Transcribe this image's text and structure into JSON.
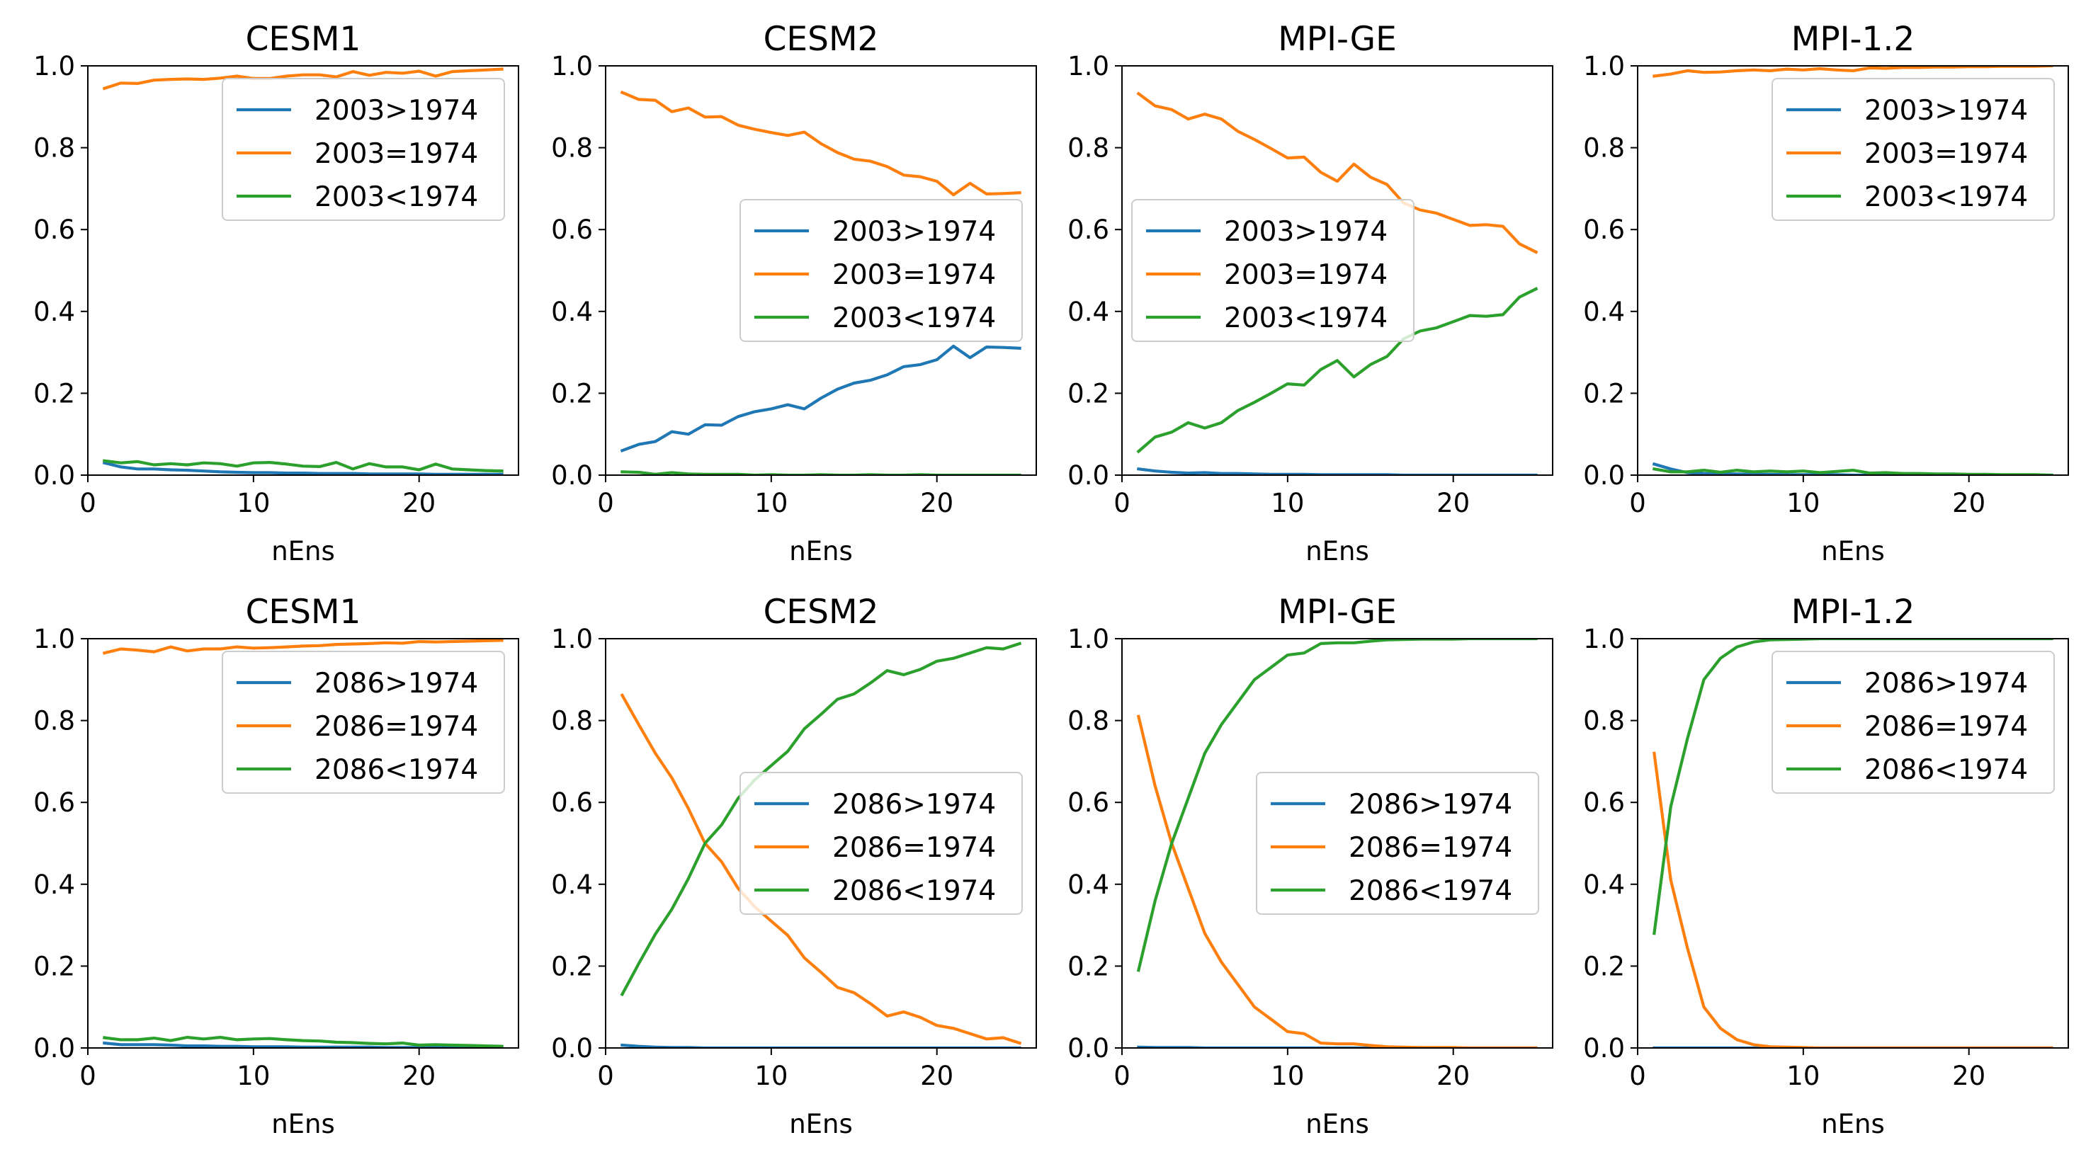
{
  "figure": {
    "layout": "2 rows x 4 columns"
  },
  "colors": {
    "gt": "#1f77b4",
    "eq": "#ff7f0e",
    "lt": "#2ca02c"
  },
  "chart_data": [
    {
      "type": "line",
      "title": "CESM1",
      "xlabel": "nEns",
      "ylabel": "",
      "xlim": [
        0,
        26
      ],
      "ylim": [
        0,
        1
      ],
      "xticks": [
        0,
        10,
        20
      ],
      "yticks": [
        0.0,
        0.2,
        0.4,
        0.6,
        0.8,
        1.0
      ],
      "legend_placement": "upper-right",
      "x": [
        1,
        2,
        3,
        4,
        5,
        6,
        7,
        8,
        9,
        10,
        11,
        12,
        13,
        14,
        15,
        16,
        17,
        18,
        19,
        20,
        21,
        22,
        23,
        24,
        25
      ],
      "series": [
        {
          "name": "2003>1974",
          "color": "#1f77b4",
          "values": [
            0.03,
            0.02,
            0.015,
            0.015,
            0.013,
            0.012,
            0.01,
            0.008,
            0.007,
            0.006,
            0.006,
            0.005,
            0.005,
            0.004,
            0.004,
            0.004,
            0.003,
            0.003,
            0.003,
            0.003,
            0.002,
            0.002,
            0.002,
            0.002,
            0.002
          ]
        },
        {
          "name": "2003=1974",
          "color": "#ff7f0e",
          "values": [
            0.945,
            0.958,
            0.957,
            0.965,
            0.967,
            0.968,
            0.967,
            0.97,
            0.975,
            0.969,
            0.969,
            0.975,
            0.978,
            0.978,
            0.973,
            0.986,
            0.977,
            0.984,
            0.982,
            0.987,
            0.975,
            0.986,
            0.988,
            0.99,
            0.992
          ]
        },
        {
          "name": "2003<1974",
          "color": "#2ca02c",
          "values": [
            0.035,
            0.03,
            0.033,
            0.025,
            0.028,
            0.025,
            0.03,
            0.028,
            0.022,
            0.03,
            0.031,
            0.027,
            0.022,
            0.021,
            0.031,
            0.015,
            0.028,
            0.02,
            0.02,
            0.013,
            0.027,
            0.015,
            0.013,
            0.011,
            0.01
          ]
        }
      ]
    },
    {
      "type": "line",
      "title": "CESM2",
      "xlabel": "nEns",
      "ylabel": "",
      "xlim": [
        0,
        26
      ],
      "ylim": [
        0,
        1
      ],
      "xticks": [
        0,
        10,
        20
      ],
      "yticks": [
        0.0,
        0.2,
        0.4,
        0.6,
        0.8,
        1.0
      ],
      "legend_placement": "center-right",
      "x": [
        1,
        2,
        3,
        4,
        5,
        6,
        7,
        8,
        9,
        10,
        11,
        12,
        13,
        14,
        15,
        16,
        17,
        18,
        19,
        20,
        21,
        22,
        23,
        24,
        25
      ],
      "series": [
        {
          "name": "2003>1974",
          "color": "#1f77b4",
          "values": [
            0.06,
            0.075,
            0.082,
            0.106,
            0.1,
            0.123,
            0.122,
            0.143,
            0.155,
            0.162,
            0.172,
            0.162,
            0.188,
            0.21,
            0.225,
            0.232,
            0.245,
            0.265,
            0.27,
            0.282,
            0.315,
            0.287,
            0.313,
            0.312,
            0.31
          ]
        },
        {
          "name": "2003=1974",
          "color": "#ff7f0e",
          "values": [
            0.935,
            0.918,
            0.916,
            0.888,
            0.897,
            0.875,
            0.876,
            0.855,
            0.845,
            0.837,
            0.83,
            0.838,
            0.81,
            0.788,
            0.772,
            0.767,
            0.754,
            0.733,
            0.729,
            0.718,
            0.685,
            0.713,
            0.687,
            0.688,
            0.69
          ]
        },
        {
          "name": "2003<1974",
          "color": "#2ca02c",
          "values": [
            0.008,
            0.007,
            0.002,
            0.006,
            0.003,
            0.002,
            0.002,
            0.002,
            0.0,
            0.001,
            0.0,
            0.0,
            0.001,
            0.0,
            0.0,
            0.001,
            0.0,
            0.0,
            0.001,
            0.0,
            0.0,
            0.0,
            0.0,
            0.0,
            0.0
          ]
        }
      ]
    },
    {
      "type": "line",
      "title": "MPI-GE",
      "xlabel": "nEns",
      "ylabel": "",
      "xlim": [
        0,
        26
      ],
      "ylim": [
        0,
        1
      ],
      "xticks": [
        0,
        10,
        20
      ],
      "yticks": [
        0.0,
        0.2,
        0.4,
        0.6,
        0.8,
        1.0
      ],
      "legend_placement": "center-left",
      "x": [
        1,
        2,
        3,
        4,
        5,
        6,
        7,
        8,
        9,
        10,
        11,
        12,
        13,
        14,
        15,
        16,
        17,
        18,
        19,
        20,
        21,
        22,
        23,
        24,
        25
      ],
      "series": [
        {
          "name": "2003>1974",
          "color": "#1f77b4",
          "values": [
            0.015,
            0.01,
            0.007,
            0.005,
            0.006,
            0.004,
            0.004,
            0.003,
            0.002,
            0.002,
            0.002,
            0.001,
            0.001,
            0.001,
            0.001,
            0.001,
            0.0,
            0.0,
            0.0,
            0.0,
            0.0,
            0.0,
            0.0,
            0.0,
            0.0
          ]
        },
        {
          "name": "2003=1974",
          "color": "#ff7f0e",
          "values": [
            0.932,
            0.902,
            0.893,
            0.87,
            0.882,
            0.87,
            0.84,
            0.82,
            0.798,
            0.775,
            0.777,
            0.74,
            0.718,
            0.76,
            0.728,
            0.71,
            0.665,
            0.648,
            0.64,
            0.625,
            0.61,
            0.612,
            0.608,
            0.565,
            0.545
          ]
        },
        {
          "name": "2003<1974",
          "color": "#2ca02c",
          "values": [
            0.058,
            0.093,
            0.105,
            0.128,
            0.115,
            0.128,
            0.158,
            0.178,
            0.2,
            0.223,
            0.22,
            0.258,
            0.28,
            0.24,
            0.27,
            0.29,
            0.333,
            0.352,
            0.36,
            0.375,
            0.39,
            0.388,
            0.392,
            0.435,
            0.455
          ]
        }
      ]
    },
    {
      "type": "line",
      "title": "MPI-1.2",
      "xlabel": "nEns",
      "ylabel": "",
      "xlim": [
        0,
        26
      ],
      "ylim": [
        0,
        1
      ],
      "xticks": [
        0,
        10,
        20
      ],
      "yticks": [
        0.0,
        0.2,
        0.4,
        0.6,
        0.8,
        1.0
      ],
      "legend_placement": "upper-right",
      "x": [
        1,
        2,
        3,
        4,
        5,
        6,
        7,
        8,
        9,
        10,
        11,
        12,
        13,
        14,
        15,
        16,
        17,
        18,
        19,
        20,
        21,
        22,
        23,
        24,
        25
      ],
      "series": [
        {
          "name": "2003>1974",
          "color": "#1f77b4",
          "values": [
            0.027,
            0.015,
            0.006,
            0.004,
            0.003,
            0.003,
            0.002,
            0.002,
            0.001,
            0.001,
            0.001,
            0.001,
            0.0,
            0.0,
            0.0,
            0.0,
            0.0,
            0.0,
            0.0,
            0.0,
            0.0,
            0.0,
            0.0,
            0.0,
            0.0
          ]
        },
        {
          "name": "2003=1974",
          "color": "#ff7f0e",
          "values": [
            0.975,
            0.98,
            0.988,
            0.984,
            0.985,
            0.988,
            0.99,
            0.988,
            0.992,
            0.99,
            0.993,
            0.99,
            0.988,
            0.995,
            0.994,
            0.996,
            0.996,
            0.997,
            0.997,
            0.998,
            0.998,
            0.999,
            0.999,
            0.999,
            1.0
          ]
        },
        {
          "name": "2003<1974",
          "color": "#2ca02c",
          "values": [
            0.015,
            0.008,
            0.008,
            0.012,
            0.007,
            0.012,
            0.008,
            0.01,
            0.008,
            0.01,
            0.006,
            0.009,
            0.012,
            0.005,
            0.006,
            0.004,
            0.004,
            0.003,
            0.003,
            0.002,
            0.002,
            0.001,
            0.001,
            0.001,
            0.0
          ]
        }
      ]
    },
    {
      "type": "line",
      "title": "CESM1",
      "xlabel": "nEns",
      "ylabel": "",
      "xlim": [
        0,
        26
      ],
      "ylim": [
        0,
        1
      ],
      "xticks": [
        0,
        10,
        20
      ],
      "yticks": [
        0.0,
        0.2,
        0.4,
        0.6,
        0.8,
        1.0
      ],
      "legend_placement": "upper-right",
      "x": [
        1,
        2,
        3,
        4,
        5,
        6,
        7,
        8,
        9,
        10,
        11,
        12,
        13,
        14,
        15,
        16,
        17,
        18,
        19,
        20,
        21,
        22,
        23,
        24,
        25
      ],
      "series": [
        {
          "name": "2086>1974",
          "color": "#1f77b4",
          "values": [
            0.012,
            0.008,
            0.008,
            0.008,
            0.007,
            0.005,
            0.005,
            0.004,
            0.004,
            0.003,
            0.003,
            0.003,
            0.002,
            0.002,
            0.002,
            0.002,
            0.002,
            0.001,
            0.001,
            0.001,
            0.001,
            0.001,
            0.001,
            0.001,
            0.001
          ]
        },
        {
          "name": "2086=1974",
          "color": "#ff7f0e",
          "values": [
            0.965,
            0.975,
            0.972,
            0.968,
            0.98,
            0.97,
            0.975,
            0.975,
            0.98,
            0.977,
            0.978,
            0.98,
            0.982,
            0.983,
            0.986,
            0.987,
            0.988,
            0.99,
            0.989,
            0.993,
            0.992,
            0.993,
            0.994,
            0.995,
            0.996
          ]
        },
        {
          "name": "2086<1974",
          "color": "#2ca02c",
          "values": [
            0.025,
            0.02,
            0.02,
            0.024,
            0.018,
            0.026,
            0.022,
            0.026,
            0.02,
            0.022,
            0.023,
            0.02,
            0.018,
            0.017,
            0.014,
            0.013,
            0.011,
            0.01,
            0.012,
            0.007,
            0.008,
            0.007,
            0.006,
            0.005,
            0.004
          ]
        }
      ]
    },
    {
      "type": "line",
      "title": "CESM2",
      "xlabel": "nEns",
      "ylabel": "",
      "xlim": [
        0,
        26
      ],
      "ylim": [
        0,
        1
      ],
      "xticks": [
        0,
        10,
        20
      ],
      "yticks": [
        0.0,
        0.2,
        0.4,
        0.6,
        0.8,
        1.0
      ],
      "legend_placement": "center-right",
      "x": [
        1,
        2,
        3,
        4,
        5,
        6,
        7,
        8,
        9,
        10,
        11,
        12,
        13,
        14,
        15,
        16,
        17,
        18,
        19,
        20,
        21,
        22,
        23,
        24,
        25
      ],
      "series": [
        {
          "name": "2086>1974",
          "color": "#1f77b4",
          "values": [
            0.007,
            0.004,
            0.002,
            0.001,
            0.001,
            0.0,
            0.0,
            0.0,
            0.0,
            0.0,
            0.0,
            0.0,
            0.0,
            0.0,
            0.0,
            0.0,
            0.0,
            0.0,
            0.0,
            0.0,
            0.0,
            0.0,
            0.0,
            0.0,
            0.0
          ]
        },
        {
          "name": "2086=1974",
          "color": "#ff7f0e",
          "values": [
            0.862,
            0.79,
            0.72,
            0.66,
            0.585,
            0.5,
            0.455,
            0.39,
            0.345,
            0.31,
            0.275,
            0.22,
            0.185,
            0.148,
            0.135,
            0.108,
            0.078,
            0.088,
            0.075,
            0.055,
            0.048,
            0.035,
            0.022,
            0.025,
            0.012
          ]
        },
        {
          "name": "2086<1974",
          "color": "#2ca02c",
          "values": [
            0.131,
            0.206,
            0.278,
            0.339,
            0.414,
            0.5,
            0.545,
            0.61,
            0.655,
            0.69,
            0.725,
            0.78,
            0.815,
            0.852,
            0.865,
            0.892,
            0.922,
            0.912,
            0.925,
            0.945,
            0.952,
            0.965,
            0.978,
            0.975,
            0.988
          ]
        }
      ]
    },
    {
      "type": "line",
      "title": "MPI-GE",
      "xlabel": "nEns",
      "ylabel": "",
      "xlim": [
        0,
        26
      ],
      "ylim": [
        0,
        1
      ],
      "xticks": [
        0,
        10,
        20
      ],
      "yticks": [
        0.0,
        0.2,
        0.4,
        0.6,
        0.8,
        1.0
      ],
      "legend_placement": "center-right",
      "x": [
        1,
        2,
        3,
        4,
        5,
        6,
        7,
        8,
        9,
        10,
        11,
        12,
        13,
        14,
        15,
        16,
        17,
        18,
        19,
        20,
        21,
        22,
        23,
        24,
        25
      ],
      "series": [
        {
          "name": "2086>1974",
          "color": "#1f77b4",
          "values": [
            0.002,
            0.001,
            0.001,
            0.001,
            0.0,
            0.0,
            0.0,
            0.0,
            0.0,
            0.0,
            0.0,
            0.0,
            0.0,
            0.0,
            0.0,
            0.0,
            0.0,
            0.0,
            0.0,
            0.0,
            0.0,
            0.0,
            0.0,
            0.0,
            0.0
          ]
        },
        {
          "name": "2086=1974",
          "color": "#ff7f0e",
          "values": [
            0.81,
            0.64,
            0.5,
            0.39,
            0.28,
            0.21,
            0.155,
            0.1,
            0.07,
            0.04,
            0.035,
            0.012,
            0.01,
            0.01,
            0.006,
            0.003,
            0.002,
            0.001,
            0.001,
            0.001,
            0.0,
            0.0,
            0.0,
            0.0,
            0.0
          ]
        },
        {
          "name": "2086<1974",
          "color": "#2ca02c",
          "values": [
            0.19,
            0.36,
            0.5,
            0.61,
            0.72,
            0.79,
            0.845,
            0.9,
            0.93,
            0.96,
            0.965,
            0.988,
            0.99,
            0.99,
            0.994,
            0.997,
            0.998,
            0.999,
            0.999,
            0.999,
            1.0,
            1.0,
            1.0,
            1.0,
            1.0
          ]
        }
      ]
    },
    {
      "type": "line",
      "title": "MPI-1.2",
      "xlabel": "nEns",
      "ylabel": "",
      "xlim": [
        0,
        26
      ],
      "ylim": [
        0,
        1
      ],
      "xticks": [
        0,
        10,
        20
      ],
      "yticks": [
        0.0,
        0.2,
        0.4,
        0.6,
        0.8,
        1.0
      ],
      "legend_placement": "upper-right",
      "x": [
        1,
        2,
        3,
        4,
        5,
        6,
        7,
        8,
        9,
        10,
        11,
        12,
        13,
        14,
        15,
        16,
        17,
        18,
        19,
        20,
        21,
        22,
        23,
        24,
        25
      ],
      "series": [
        {
          "name": "2086>1974",
          "color": "#1f77b4",
          "values": [
            0.0,
            0.0,
            0.0,
            0.0,
            0.0,
            0.0,
            0.0,
            0.0,
            0.0,
            0.0,
            0.0,
            0.0,
            0.0,
            0.0,
            0.0,
            0.0,
            0.0,
            0.0,
            0.0,
            0.0,
            0.0,
            0.0,
            0.0,
            0.0,
            0.0
          ]
        },
        {
          "name": "2086=1974",
          "color": "#ff7f0e",
          "values": [
            0.72,
            0.41,
            0.245,
            0.1,
            0.048,
            0.02,
            0.008,
            0.003,
            0.002,
            0.001,
            0.0,
            0.0,
            0.0,
            0.0,
            0.0,
            0.0,
            0.0,
            0.0,
            0.0,
            0.0,
            0.0,
            0.0,
            0.0,
            0.0,
            0.0
          ]
        },
        {
          "name": "2086<1974",
          "color": "#2ca02c",
          "values": [
            0.28,
            0.59,
            0.755,
            0.9,
            0.952,
            0.98,
            0.992,
            0.997,
            0.998,
            0.999,
            1.0,
            1.0,
            1.0,
            1.0,
            1.0,
            1.0,
            1.0,
            1.0,
            1.0,
            1.0,
            1.0,
            1.0,
            1.0,
            1.0,
            1.0
          ]
        }
      ]
    }
  ]
}
